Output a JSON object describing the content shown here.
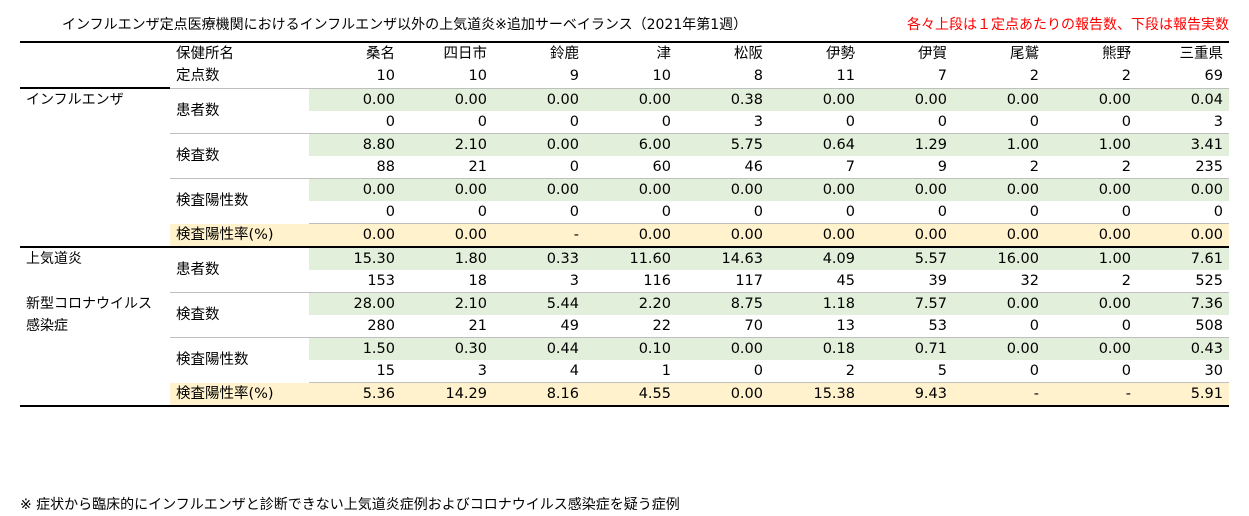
{
  "title": "インフルエンザ定点医療機関におけるインフルエンザ以外の上気道炎※追加サーベイランス（2021年第1週）",
  "note": "各々上段は１定点あたりの報告数、下段は報告実数",
  "header": {
    "office_label": "保健所名",
    "offices": [
      "桑名",
      "四日市",
      "鈴鹿",
      "津",
      "松阪",
      "伊勢",
      "伊賀",
      "尾鷲",
      "熊野",
      "三重県"
    ],
    "sentinel_label": "定点数",
    "sentinels": [
      "10",
      "10",
      "9",
      "10",
      "8",
      "11",
      "7",
      "2",
      "2",
      "69"
    ]
  },
  "sections": [
    {
      "category_lines": [
        "インフルエンザ"
      ],
      "rows": [
        {
          "label": "患者数",
          "per": [
            "0.00",
            "0.00",
            "0.00",
            "0.00",
            "0.38",
            "0.00",
            "0.00",
            "0.00",
            "0.00",
            "0.04"
          ],
          "actual": [
            "0",
            "0",
            "0",
            "0",
            "3",
            "0",
            "0",
            "0",
            "0",
            "3"
          ]
        },
        {
          "label": "検査数",
          "per": [
            "8.80",
            "2.10",
            "0.00",
            "6.00",
            "5.75",
            "0.64",
            "1.29",
            "1.00",
            "1.00",
            "3.41"
          ],
          "actual": [
            "88",
            "21",
            "0",
            "60",
            "46",
            "7",
            "9",
            "2",
            "2",
            "235"
          ]
        },
        {
          "label": "検査陽性数",
          "per": [
            "0.00",
            "0.00",
            "0.00",
            "0.00",
            "0.00",
            "0.00",
            "0.00",
            "0.00",
            "0.00",
            "0.00"
          ],
          "actual": [
            "0",
            "0",
            "0",
            "0",
            "0",
            "0",
            "0",
            "0",
            "0",
            "0"
          ]
        }
      ],
      "rate": {
        "label": "検査陽性率(%)",
        "values": [
          "0.00",
          "0.00",
          "-",
          "0.00",
          "0.00",
          "0.00",
          "0.00",
          "0.00",
          "0.00",
          "0.00"
        ]
      }
    },
    {
      "category_lines": [
        "上気道炎",
        "",
        "新型コロナウイルス",
        "感染症"
      ],
      "rows": [
        {
          "label": "患者数",
          "per": [
            "15.30",
            "1.80",
            "0.33",
            "11.60",
            "14.63",
            "4.09",
            "5.57",
            "16.00",
            "1.00",
            "7.61"
          ],
          "actual": [
            "153",
            "18",
            "3",
            "116",
            "117",
            "45",
            "39",
            "32",
            "2",
            "525"
          ]
        },
        {
          "label": "検査数",
          "per": [
            "28.00",
            "2.10",
            "5.44",
            "2.20",
            "8.75",
            "1.18",
            "7.57",
            "0.00",
            "0.00",
            "7.36"
          ],
          "actual": [
            "280",
            "21",
            "49",
            "22",
            "70",
            "13",
            "53",
            "0",
            "0",
            "508"
          ]
        },
        {
          "label": "検査陽性数",
          "per": [
            "1.50",
            "0.30",
            "0.44",
            "0.10",
            "0.00",
            "0.18",
            "0.71",
            "0.00",
            "0.00",
            "0.43"
          ],
          "actual": [
            "15",
            "3",
            "4",
            "1",
            "0",
            "2",
            "5",
            "0",
            "0",
            "30"
          ]
        }
      ],
      "rate": {
        "label": "検査陽性率(%)",
        "values": [
          "5.36",
          "14.29",
          "8.16",
          "4.55",
          "0.00",
          "15.38",
          "9.43",
          "-",
          "-",
          "5.91"
        ]
      }
    }
  ],
  "footnote": "※ 症状から臨床的にインフルエンザと診断できない上気道炎症例およびコロナウイルス感染症を疑う症例"
}
